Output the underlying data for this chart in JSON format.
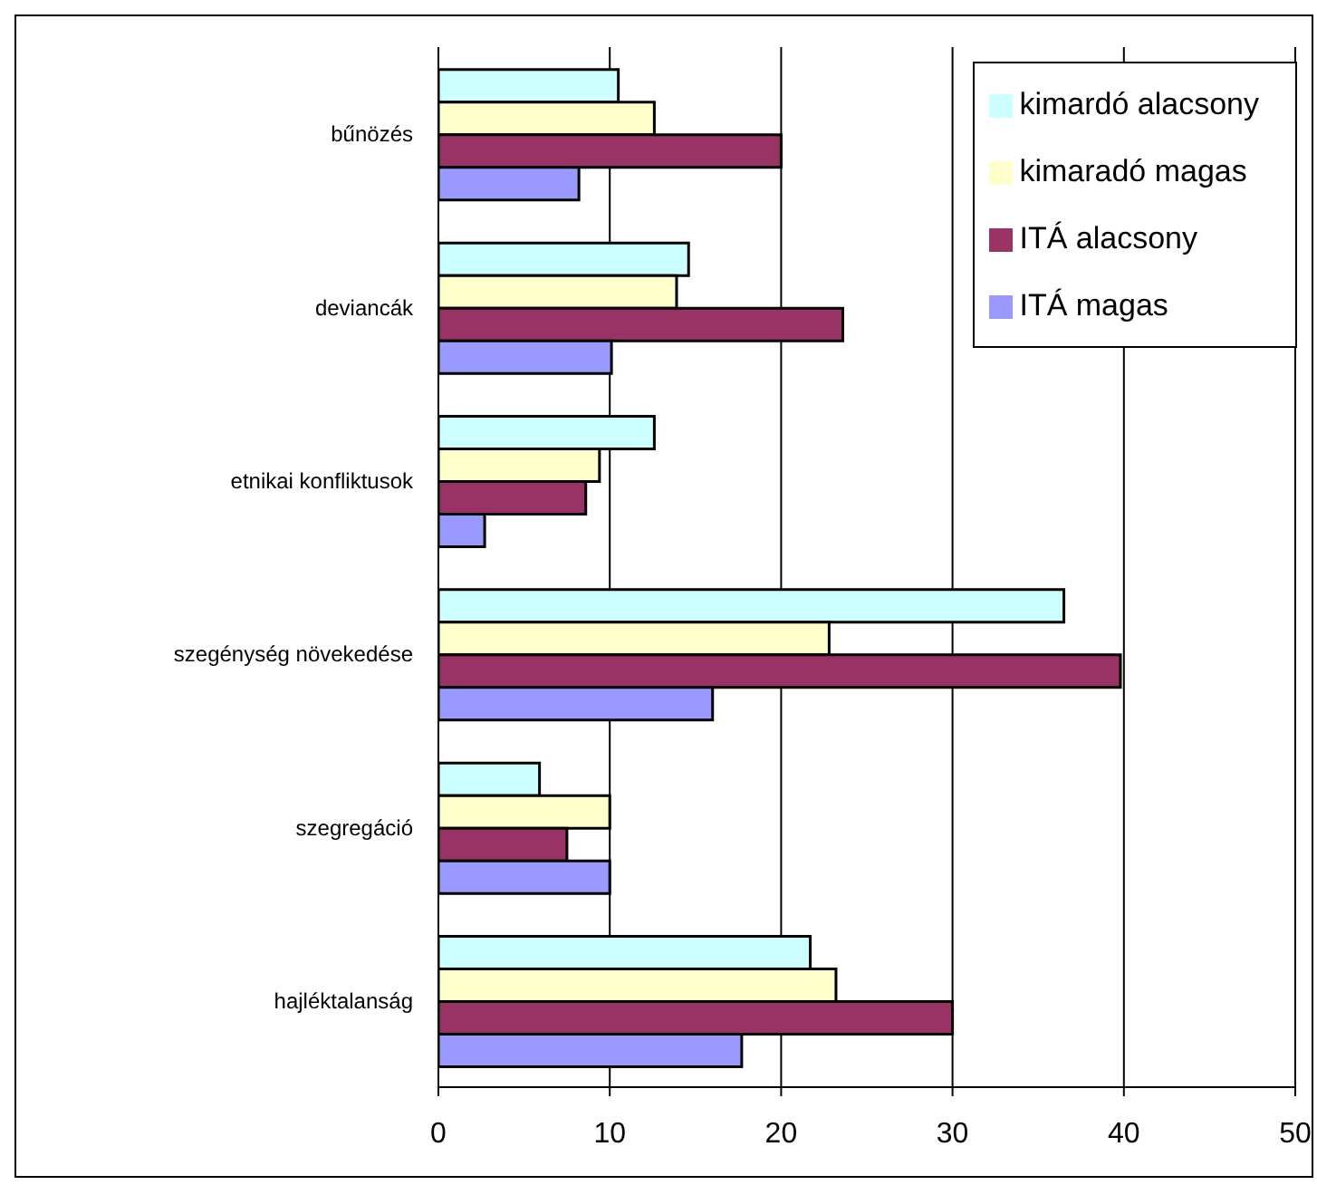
{
  "chart_data": {
    "type": "bar",
    "orientation": "horizontal",
    "categories": [
      "bűnözés",
      "deviancák",
      "etnikai konfliktusok",
      "szegénység növekedése",
      "szegregáció",
      "hajléktalanság"
    ],
    "series": [
      {
        "name": "kimardó alacsony",
        "color": "#ccffff",
        "values": [
          10.5,
          14.6,
          12.6,
          36.5,
          5.9,
          21.7
        ]
      },
      {
        "name": "kimaradó magas",
        "color": "#ffffcc",
        "values": [
          12.6,
          13.9,
          9.4,
          22.8,
          10.0,
          23.2
        ]
      },
      {
        "name": "ITÁ alacsony",
        "color": "#993366",
        "values": [
          20.0,
          23.6,
          8.6,
          39.8,
          7.5,
          30.0
        ]
      },
      {
        "name": "ITÁ magas",
        "color": "#9999ff",
        "values": [
          8.2,
          10.1,
          2.7,
          16.0,
          10.0,
          17.7
        ]
      }
    ],
    "xlim": [
      0,
      50
    ],
    "xticks": [
      0,
      10,
      20,
      30,
      40,
      50
    ],
    "grid": "x",
    "legend": "top right"
  }
}
